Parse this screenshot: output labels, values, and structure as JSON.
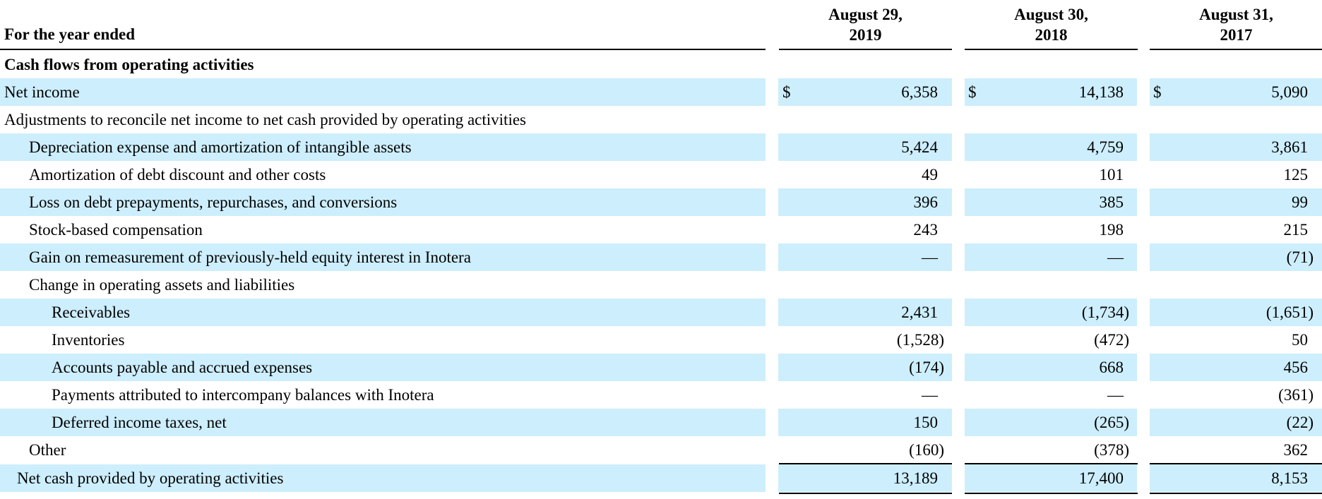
{
  "header": {
    "label": "For the year ended",
    "columns": [
      {
        "line1": "August 29,",
        "line2": "2019"
      },
      {
        "line1": "August 30,",
        "line2": "2018"
      },
      {
        "line1": "August 31,",
        "line2": "2017"
      }
    ]
  },
  "rows": [
    {
      "label": "Cash flows from operating activities",
      "values": [
        "",
        "",
        ""
      ]
    },
    {
      "label": "Net income",
      "currency": "$",
      "values": [
        "6,358",
        "14,138",
        "5,090"
      ]
    },
    {
      "label": "Adjustments to reconcile net income to net cash provided by operating activities",
      "values": [
        "",
        "",
        ""
      ]
    },
    {
      "label": "Depreciation expense and amortization of intangible assets",
      "values": [
        "5,424",
        "4,759",
        "3,861"
      ]
    },
    {
      "label": "Amortization of debt discount and other costs",
      "values": [
        "49",
        "101",
        "125"
      ]
    },
    {
      "label": "Loss on debt prepayments, repurchases, and conversions",
      "values": [
        "396",
        "385",
        "99"
      ]
    },
    {
      "label": "Stock-based compensation",
      "values": [
        "243",
        "198",
        "215"
      ]
    },
    {
      "label": "Gain on remeasurement of previously-held equity interest in Inotera",
      "values": [
        "—",
        "—",
        "(71)"
      ]
    },
    {
      "label": "Change in operating assets and liabilities",
      "values": [
        "",
        "",
        ""
      ]
    },
    {
      "label": "Receivables",
      "values": [
        "2,431",
        "(1,734)",
        "(1,651)"
      ]
    },
    {
      "label": "Inventories",
      "values": [
        "(1,528)",
        "(472)",
        "50"
      ]
    },
    {
      "label": "Accounts payable and accrued expenses",
      "values": [
        "(174)",
        "668",
        "456"
      ]
    },
    {
      "label": "Payments attributed to intercompany balances with Inotera",
      "values": [
        "—",
        "—",
        "(361)"
      ]
    },
    {
      "label": "Deferred income taxes, net",
      "values": [
        "150",
        "(265)",
        "(22)"
      ]
    },
    {
      "label": "Other",
      "values": [
        "(160)",
        "(378)",
        "362"
      ]
    },
    {
      "label": "Net cash provided by operating activities",
      "values": [
        "13,189",
        "17,400",
        "8,153"
      ]
    }
  ]
}
